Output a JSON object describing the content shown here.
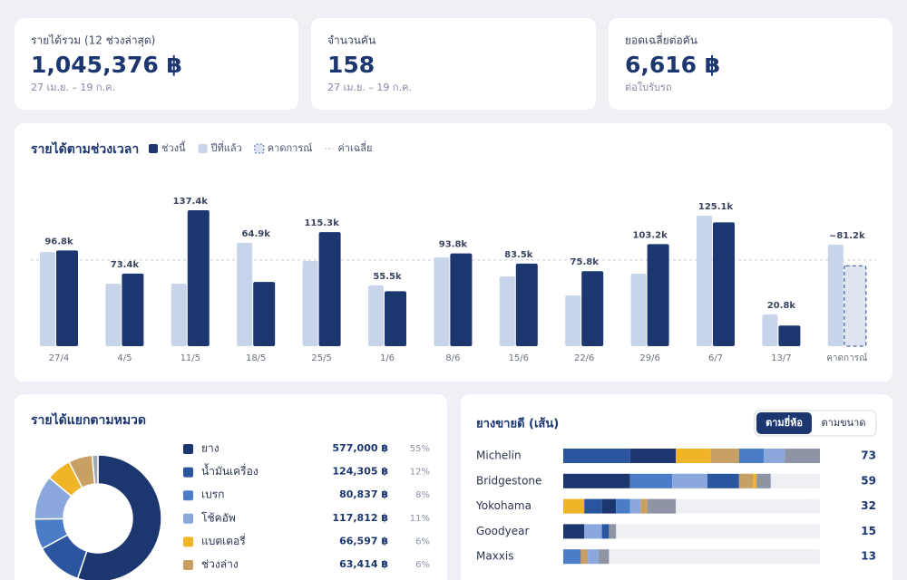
{
  "kpis": [
    {
      "label": "รายได้รวม (12 ช่วงล่าสุด)",
      "value": "1,045,376 ฿",
      "note": "27 เม.ย. – 19 ก.ค."
    },
    {
      "label": "จำนวนคัน",
      "value": "158",
      "note": "27 เม.ย. – 19 ก.ค."
    },
    {
      "label": "ยอดเฉลี่ยต่อคัน",
      "value": "6,616 ฿",
      "note": "ต่อใบรับรถ"
    }
  ],
  "chart_data": [
    {
      "type": "bar",
      "title": "รายได้ตามช่วงเวลา",
      "categories": [
        "27/4",
        "4/5",
        "11/5",
        "18/5",
        "25/5",
        "1/6",
        "8/6",
        "15/6",
        "22/6",
        "29/6",
        "6/7",
        "13/7",
        "คาดการณ์"
      ],
      "series": [
        {
          "name": "ช่วงนี้",
          "color": "#1c3670",
          "values": [
            96800,
            73400,
            137400,
            64900,
            115300,
            55500,
            93800,
            83500,
            75800,
            103200,
            125100,
            20800,
            null
          ],
          "value_labels": [
            "96.8k",
            "73.4k",
            "137.4k",
            "64.9k",
            "115.3k",
            "55.5k",
            "93.8k",
            "83.5k",
            "75.8k",
            "103.2k",
            "125.1k",
            "20.8k",
            null
          ]
        },
        {
          "name": "ปีที่แล้ว",
          "color": "#c8d4ea",
          "values": [
            95200,
            63200,
            63200,
            104400,
            86100,
            61400,
            89700,
            70500,
            51300,
            73300,
            131900,
            32100,
            102600
          ]
        },
        {
          "name": "คาดการณ์",
          "color": "#dfe5f0",
          "dashed": true,
          "values": [
            null,
            null,
            null,
            null,
            null,
            null,
            null,
            null,
            null,
            null,
            null,
            null,
            81200
          ],
          "value_labels": [
            null,
            null,
            null,
            null,
            null,
            null,
            null,
            null,
            null,
            null,
            null,
            null,
            "~81.2k"
          ]
        }
      ],
      "average": {
        "name": "ค่าเฉลี่ย",
        "value": 87115
      }
    },
    {
      "type": "pie",
      "title": "รายได้แยกตามหมวด",
      "donut": true,
      "categories": [
        "ยาง",
        "น้ำมันเครื่อง",
        "เบรก",
        "โช้คอัพ",
        "แบตเตอรี่",
        "ช่วงล่าง",
        null
      ],
      "values": [
        577000,
        124305,
        80837,
        117812,
        66597,
        63414,
        15411
      ],
      "value_labels": [
        "577,000 ฿",
        "124,305 ฿",
        "80,837 ฿",
        "117,812 ฿",
        "66,597 ฿",
        "63,414 ฿",
        null
      ],
      "shares": [
        55,
        12,
        8,
        11,
        6,
        6,
        null
      ],
      "share_labels": [
        "55%",
        "12%",
        "8%",
        "11%",
        "6%",
        "6%",
        null
      ],
      "colors": [
        "#1c3670",
        "#2c55a0",
        "#4a7cc7",
        "#8aa8dc",
        "#f0b429",
        "#c9a063",
        "#a3a8b5"
      ]
    },
    {
      "type": "stacked-bar",
      "title": "ยางขายดี (เส้น)",
      "toggle": {
        "options": [
          "ตามยี่ห้อ",
          "ตามขนาด"
        ],
        "active": 0
      },
      "categories": [
        "Michelin",
        "Bridgestone",
        "Yokohama",
        "Goodyear",
        "Maxxis"
      ],
      "totals": [
        73,
        59,
        32,
        15,
        13
      ],
      "segments": [
        [
          {
            "value": 19,
            "color": "#2c55a0"
          },
          {
            "value": 13,
            "color": "#1c3670"
          },
          {
            "value": 10,
            "color": "#f0b429"
          },
          {
            "value": 8,
            "color": "#c9a063"
          },
          {
            "value": 7,
            "color": "#4a7cc7"
          },
          {
            "value": 6,
            "color": "#8aa8dc"
          },
          {
            "value": 10,
            "color": "#8e93a6"
          }
        ],
        [
          {
            "value": 19,
            "color": "#1c3670"
          },
          {
            "value": 12,
            "color": "#4a7cc7"
          },
          {
            "value": 10,
            "color": "#8aa8dc"
          },
          {
            "value": 9,
            "color": "#2c55a0"
          },
          {
            "value": 4,
            "color": "#c9a063"
          },
          {
            "value": 1,
            "color": "#f0b429"
          },
          {
            "value": 4,
            "color": "#8e93a6"
          }
        ],
        [
          {
            "value": 6,
            "color": "#f0b429"
          },
          {
            "value": 5,
            "color": "#2c55a0"
          },
          {
            "value": 4,
            "color": "#1c3670"
          },
          {
            "value": 4,
            "color": "#4a7cc7"
          },
          {
            "value": 3,
            "color": "#8aa8dc"
          },
          {
            "value": 2,
            "color": "#c9a063"
          },
          {
            "value": 8,
            "color": "#8e93a6"
          }
        ],
        [
          {
            "value": 6,
            "color": "#1c3670"
          },
          {
            "value": 5,
            "color": "#8aa8dc"
          },
          {
            "value": 2,
            "color": "#2c55a0"
          },
          {
            "value": 2,
            "color": "#8e93a6"
          }
        ],
        [
          {
            "value": 5,
            "color": "#4a7cc7"
          },
          {
            "value": 2,
            "color": "#c9a063"
          },
          {
            "value": 3,
            "color": "#8aa8dc"
          },
          {
            "value": 3,
            "color": "#8e93a6"
          }
        ]
      ]
    }
  ]
}
